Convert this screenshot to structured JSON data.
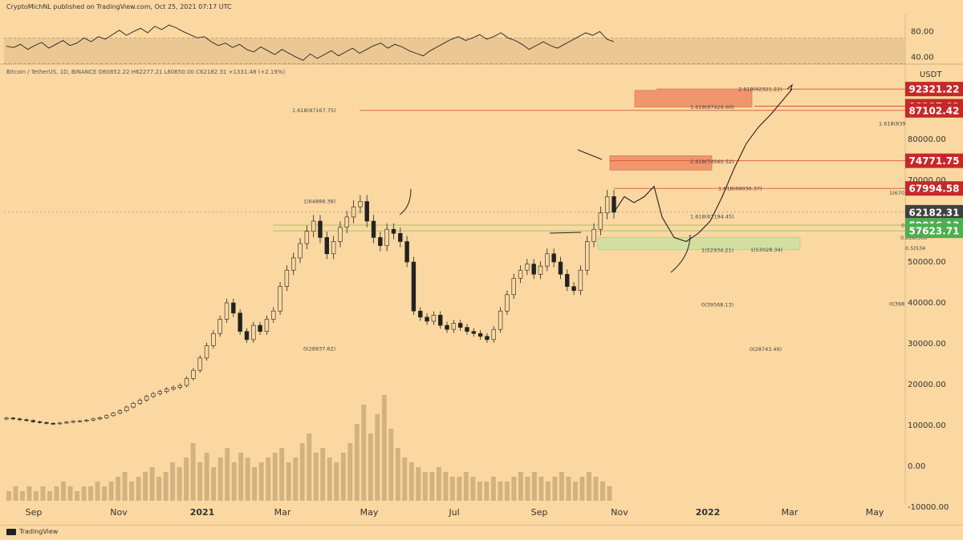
{
  "header": {
    "published": "CryptoMichNL published on TradingView.com, Oct 25, 2021 07:17 UTC"
  },
  "symbol_info": "Bitcoin / TetherUS, 1D, BINANCE  O60852.22  H62277.21  L60650.00  C62182.31  +1331.48 (+2.19%)",
  "footer": {
    "brand": "TradingView"
  },
  "colors": {
    "background": "#fbd8a1",
    "red_label": "#c62828",
    "green_label": "#4caf50",
    "price_label": "#404040",
    "red_zone": "#ef8f68",
    "green_zone": "#cfe0a0"
  },
  "chart_data": [
    {
      "type": "line",
      "panel": "RSI",
      "ylim": [
        20,
        95
      ],
      "y_ticks": [
        "80.00",
        "40.00"
      ],
      "band": [
        30,
        70
      ],
      "values": [
        57,
        55,
        60,
        52,
        58,
        63,
        54,
        60,
        66,
        58,
        62,
        70,
        64,
        72,
        68,
        75,
        82,
        74,
        80,
        85,
        78,
        88,
        83,
        90,
        86,
        80,
        75,
        70,
        72,
        64,
        58,
        62,
        55,
        60,
        52,
        48,
        56,
        50,
        44,
        52,
        46,
        40,
        35,
        45,
        38,
        44,
        50,
        42,
        48,
        54,
        46,
        52,
        58,
        62,
        54,
        60,
        56,
        50,
        46,
        42,
        50,
        56,
        62,
        68,
        72,
        66,
        70,
        75,
        68,
        72,
        78,
        70,
        66,
        60,
        52,
        58,
        64,
        58,
        54,
        60,
        66,
        72,
        78,
        74,
        80,
        68,
        64
      ]
    },
    {
      "type": "candlestick",
      "panel": "price",
      "symbol": "Bitcoin / TetherUS, 1D, BINANCE",
      "y_unit": "USDT",
      "ylim": [
        -10000,
        100000
      ],
      "x_ticks": [
        "Sep",
        "Nov",
        "2021",
        "Mar",
        "May",
        "Jul",
        "Sep",
        "Nov",
        "2022",
        "Mar",
        "May"
      ],
      "y_ticks": [
        "80000.00",
        "70000.00",
        "60000.00",
        "50000.00",
        "40000.00",
        "30000.00",
        "20000.00",
        "10000.00",
        "0.00",
        "-10000.00"
      ],
      "close_series": [
        11800,
        11600,
        11400,
        11200,
        10900,
        10700,
        10500,
        10400,
        10600,
        10800,
        11000,
        11100,
        11300,
        11600,
        11900,
        12400,
        13000,
        13600,
        14500,
        15400,
        16200,
        17100,
        17800,
        18300,
        18900,
        19300,
        19800,
        21500,
        23500,
        26500,
        29500,
        32500,
        36000,
        40000,
        37500,
        33000,
        31000,
        34500,
        33000,
        36000,
        38000,
        44000,
        48000,
        51000,
        54500,
        57500,
        60000,
        56000,
        52000,
        55000,
        58500,
        61000,
        63500,
        64800,
        60000,
        56000,
        54000,
        58000,
        57000,
        55000,
        50000,
        38000,
        36500,
        35500,
        37000,
        34500,
        33500,
        35000,
        34000,
        33000,
        32500,
        31800,
        31000,
        33500,
        38000,
        42000,
        46000,
        48000,
        49500,
        47000,
        49000,
        52000,
        50000,
        47000,
        44000,
        43000,
        48000,
        55000,
        58000,
        62000,
        66000,
        62182
      ],
      "price_labels": [
        {
          "value": 92321.22,
          "text": "92321.22",
          "color": "red"
        },
        {
          "value": 88137.82,
          "text": "88137.82",
          "color": "red"
        },
        {
          "value": 87102.42,
          "text": "87102.42",
          "color": "red"
        },
        {
          "value": 74771.75,
          "text": "74771.75",
          "color": "red"
        },
        {
          "value": 67994.58,
          "text": "67994.58",
          "color": "red"
        },
        {
          "value": 62182.31,
          "text": "62182.31",
          "color": "gray"
        },
        {
          "value": 59016.13,
          "text": "59016.13",
          "color": "green"
        },
        {
          "value": 57623.71,
          "text": "57623.71",
          "color": "green"
        }
      ],
      "fib_labels": [
        {
          "text": "2.618(92321.22)",
          "value": 92321.22
        },
        {
          "text": "1.618(87926.60)",
          "value": 87926.6
        },
        {
          "text": "1.618(87167.75)",
          "value": 87167.75
        },
        {
          "text": "1.618(839",
          "value": 83900
        },
        {
          "text": "2.618(74560.52)",
          "value": 74560.52
        },
        {
          "text": "1.618(68036.37)",
          "value": 68036.37
        },
        {
          "text": "1(670",
          "value": 67000
        },
        {
          "text": "1(64888.38)",
          "value": 64888.38
        },
        {
          "text": "1.618(61194.45)",
          "value": 61194.45
        },
        {
          "text": "0.65(59",
          "value": 59000
        },
        {
          "text": "0.618(560",
          "value": 56000
        },
        {
          "text": "0.5(534",
          "value": 53400
        },
        {
          "text": "1(52934.21)",
          "value": 52934.21
        },
        {
          "text": "1(53028.34)",
          "value": 53028.34
        },
        {
          "text": "0(39568.13)",
          "value": 39568.13
        },
        {
          "text": "0(398",
          "value": 39800
        },
        {
          "text": "0(28837.62)",
          "value": 28837.62
        },
        {
          "text": "0(28743.49)",
          "value": 28743.49
        }
      ],
      "zones": [
        {
          "type": "resistance",
          "from": 87926.6,
          "to": 92000
        },
        {
          "type": "resistance",
          "from": 72500,
          "to": 76000
        },
        {
          "type": "support",
          "from": 53028,
          "to": 56000
        }
      ],
      "projected_path": [
        62182,
        66000,
        64500,
        66000,
        68500,
        61000,
        56000,
        55000,
        57000,
        60000,
        66000,
        73000,
        79000,
        83000,
        86000,
        92321
      ]
    },
    {
      "type": "bar",
      "panel": "volume",
      "values": [
        2,
        3,
        2,
        3,
        2,
        3,
        2,
        3,
        4,
        3,
        2,
        3,
        3,
        4,
        3,
        4,
        5,
        6,
        4,
        5,
        6,
        7,
        5,
        6,
        8,
        7,
        9,
        12,
        8,
        10,
        7,
        9,
        11,
        8,
        10,
        9,
        7,
        8,
        9,
        10,
        11,
        8,
        9,
        12,
        14,
        10,
        11,
        9,
        8,
        10,
        12,
        16,
        20,
        14,
        18,
        22,
        15,
        11,
        9,
        8,
        7,
        6,
        6,
        7,
        6,
        5,
        5,
        6,
        5,
        4,
        4,
        5,
        4,
        4,
        5,
        6,
        5,
        6,
        5,
        4,
        5,
        6,
        5,
        4,
        5,
        6,
        5,
        4,
        3
      ]
    }
  ]
}
